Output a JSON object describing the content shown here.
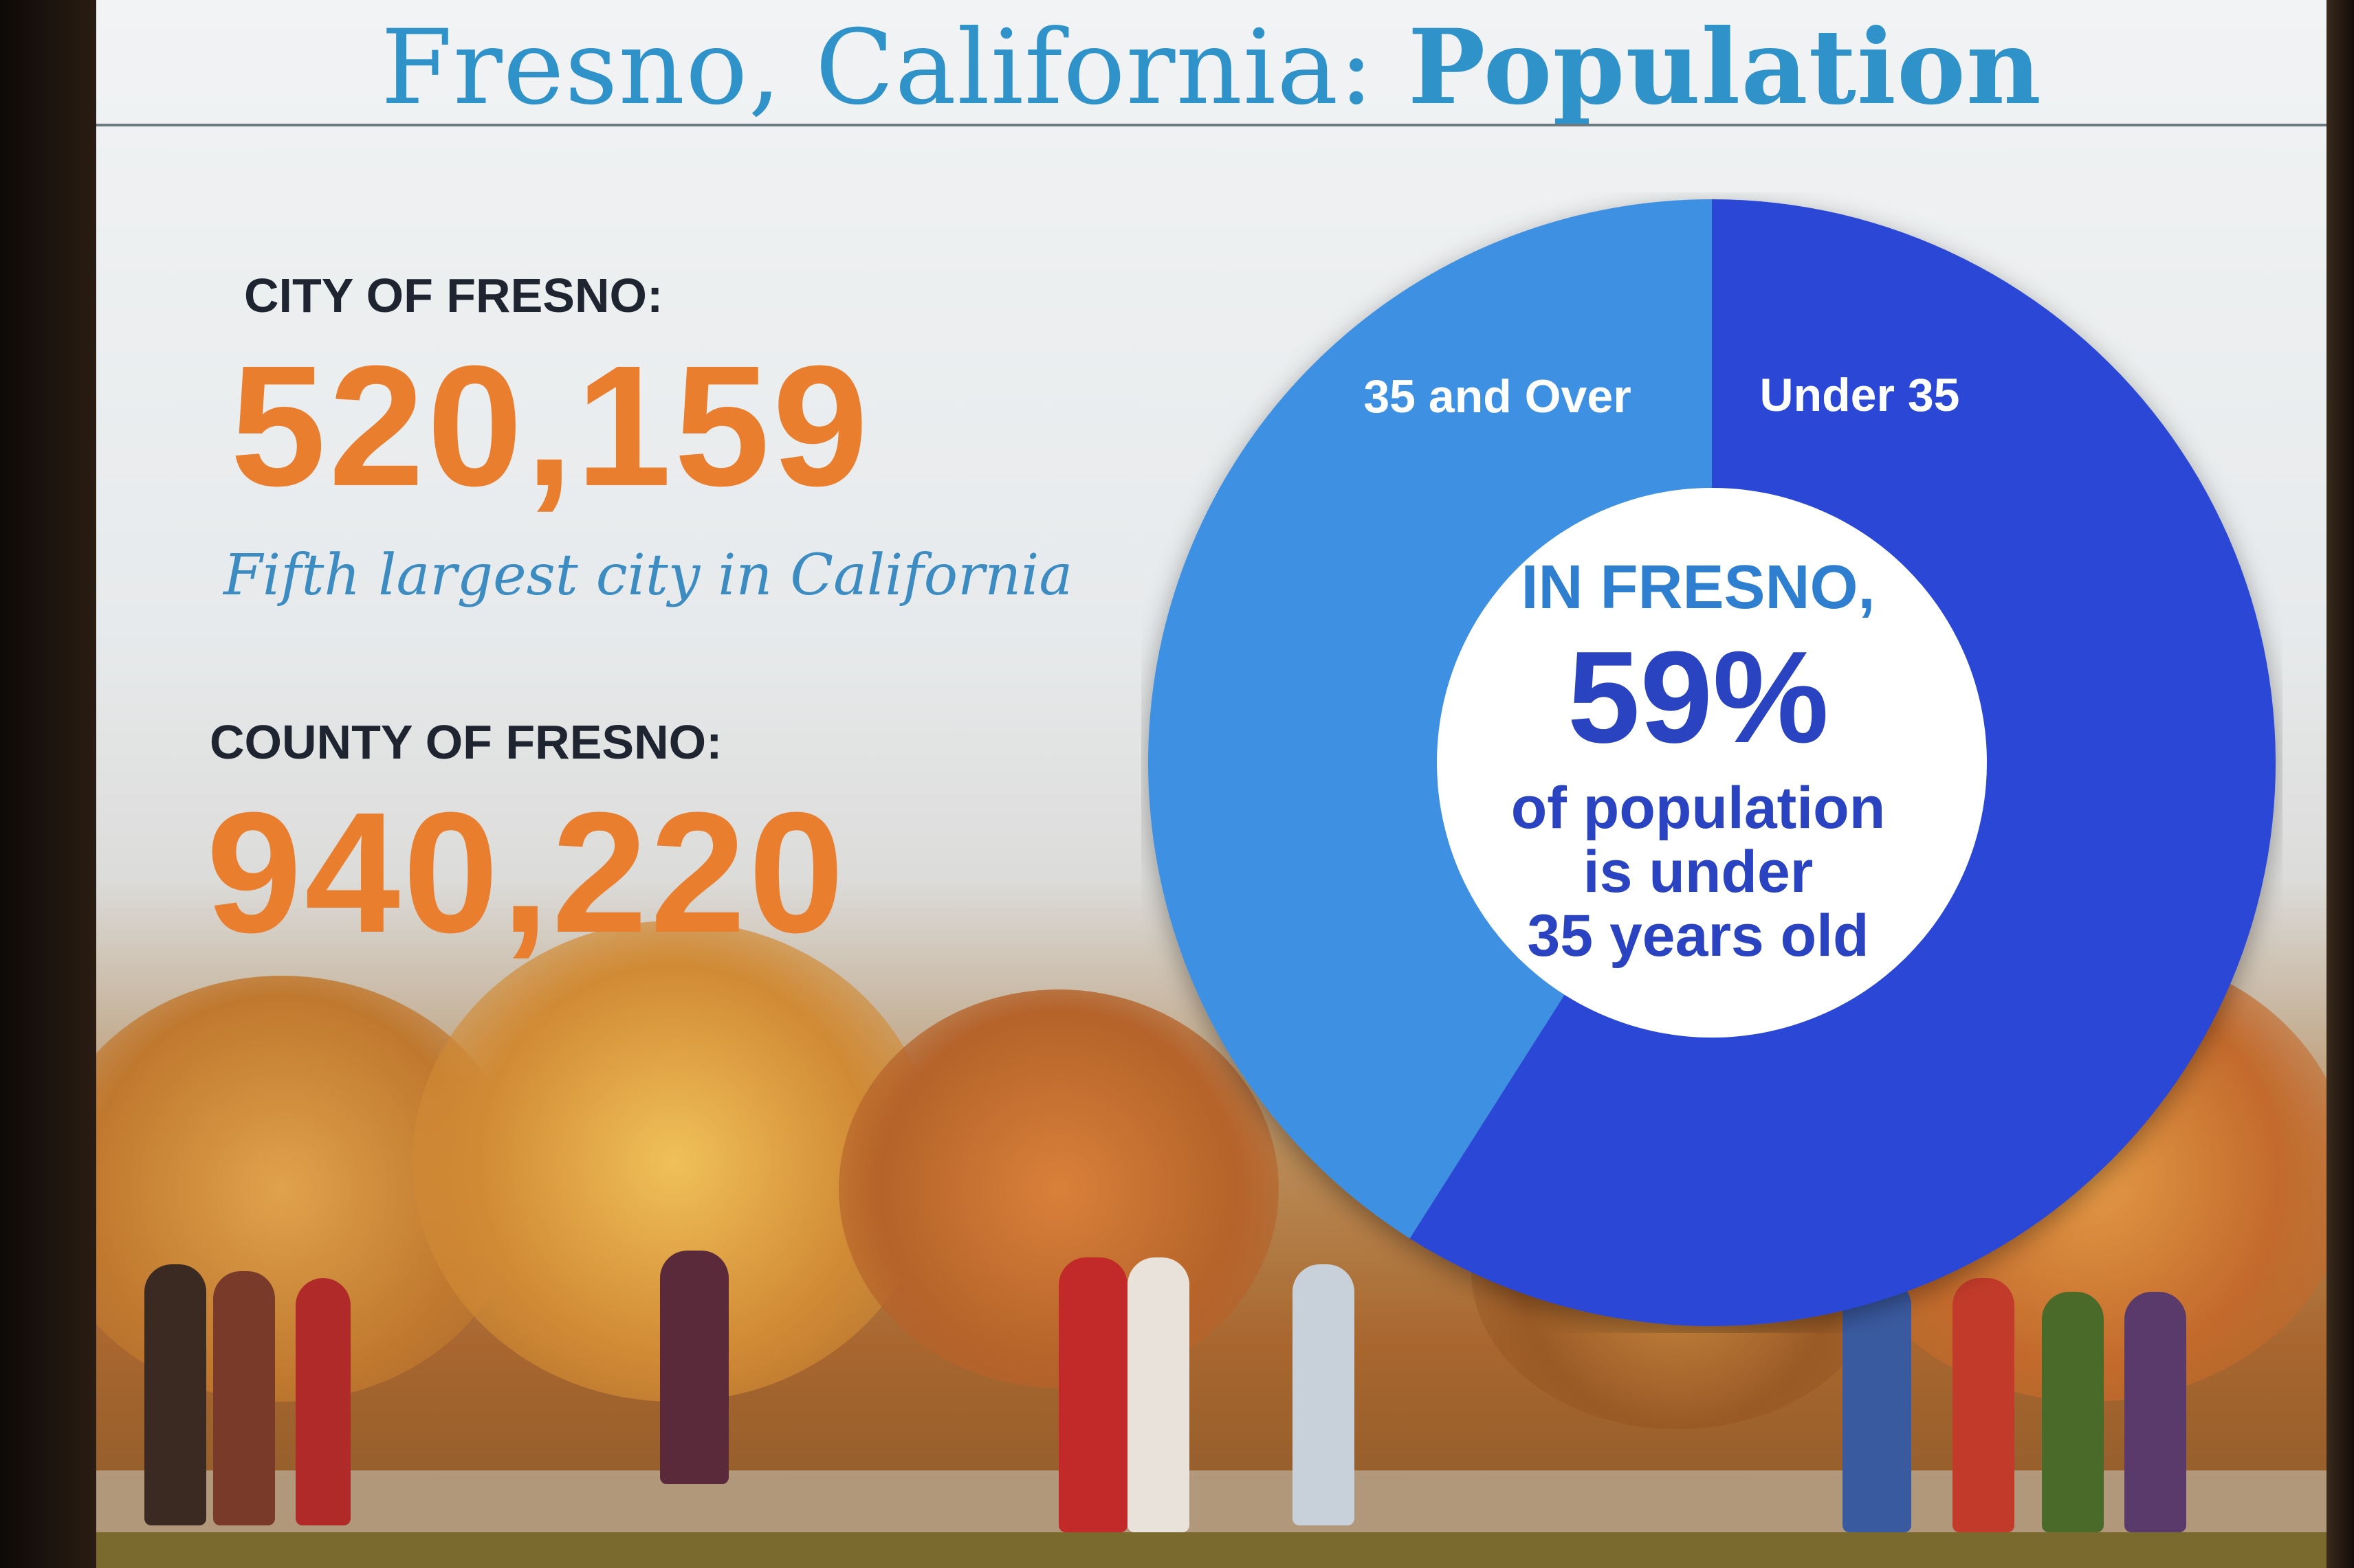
{
  "slide": {
    "title_regular": "Fresno, California: ",
    "title_bold": "Population"
  },
  "city": {
    "label": "CITY OF FRESNO:",
    "value": "520,159",
    "note": "Fifth largest city in California"
  },
  "county": {
    "label": "COUNTY OF FRESNO:",
    "value": "940,220"
  },
  "colors": {
    "accent_orange": "#e97e2e",
    "title_blue": "#2f93c9",
    "under_35": "#2b46d6",
    "over_35": "#3c90e2"
  },
  "chart_data": {
    "type": "pie",
    "title": "",
    "categories": [
      "Under 35",
      "35 and Over"
    ],
    "values": [
      59,
      41
    ],
    "unit": "%",
    "center": {
      "intro": "IN FRESNO,",
      "value": "59%",
      "line1": "of population",
      "line2": "is under",
      "line3": "35 years old"
    }
  }
}
